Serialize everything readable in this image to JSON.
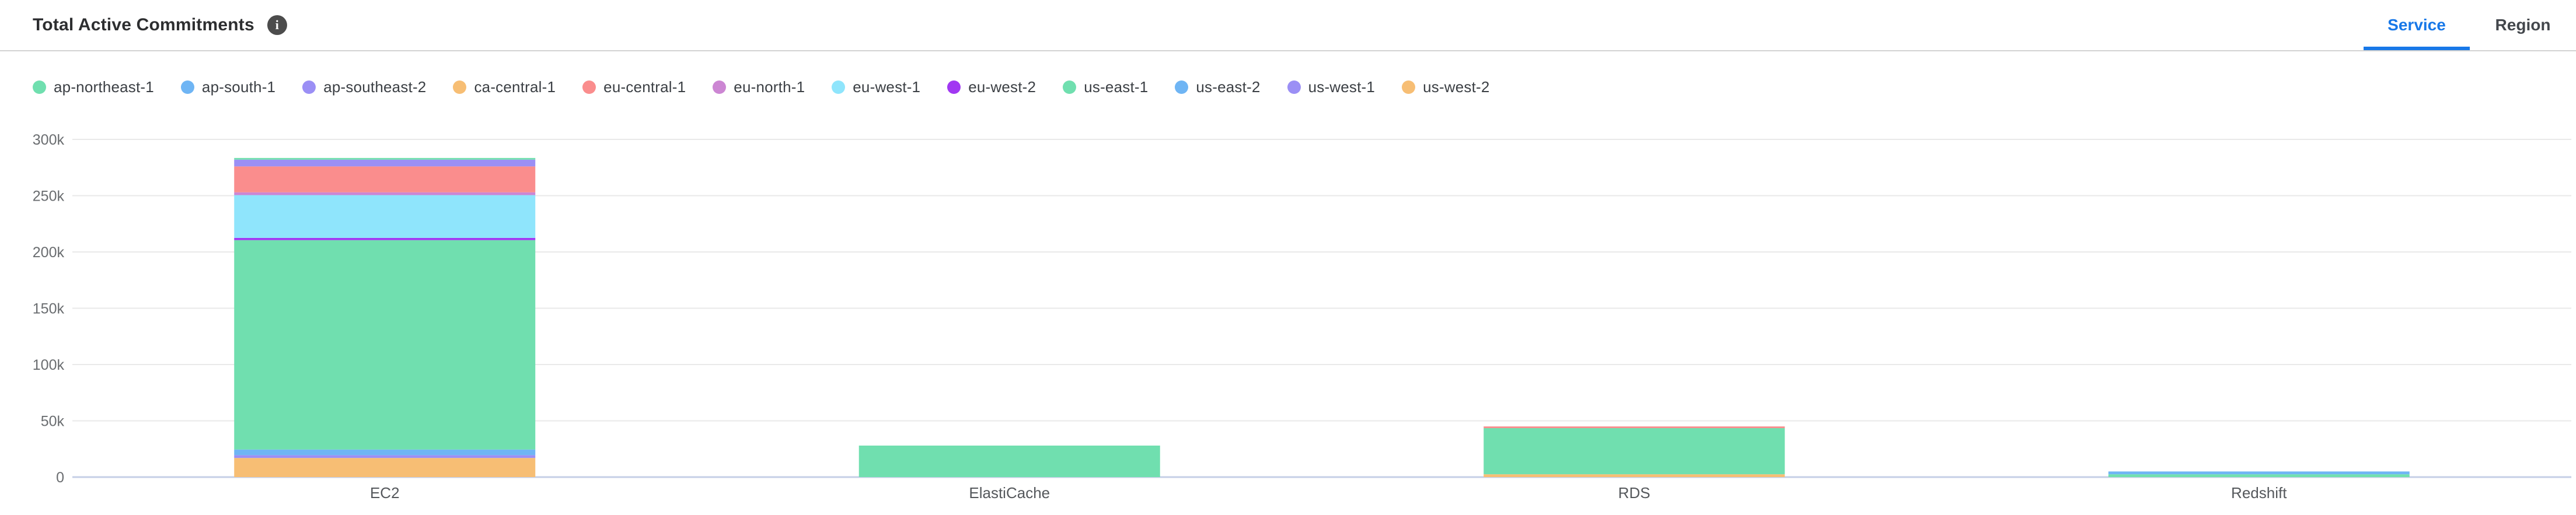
{
  "header": {
    "title": "Total Active Commitments",
    "info_icon": "i",
    "tabs": [
      {
        "label": "Service",
        "active": true
      },
      {
        "label": "Region",
        "active": false
      }
    ]
  },
  "colors": {
    "accent_blue": "#1878e8",
    "inactive_tab": "#43474c",
    "gridline": "#e9e9e9",
    "zero_axis": "#c5cfe6",
    "tick_text": "#6a6d70",
    "category_text": "#55585c"
  },
  "chart_data": {
    "type": "bar",
    "stacked": true,
    "title": "Total Active Commitments",
    "xlabel": "",
    "ylabel": "",
    "legend_position": "top",
    "grid": "horizontal",
    "ylim": [
      0,
      300000
    ],
    "yticks": [
      {
        "value": 0,
        "label": "0"
      },
      {
        "value": 50000,
        "label": "50k"
      },
      {
        "value": 100000,
        "label": "100k"
      },
      {
        "value": 150000,
        "label": "150k"
      },
      {
        "value": 200000,
        "label": "200k"
      },
      {
        "value": 250000,
        "label": "250k"
      },
      {
        "value": 300000,
        "label": "300k"
      }
    ],
    "categories": [
      "EC2",
      "ElastiCache",
      "RDS",
      "Redshift"
    ],
    "stack_note": "bottom of stack = last series in list (reverse legend order)",
    "series": [
      {
        "name": "ap-northeast-1",
        "color": "#70dfaf",
        "values": [
          1500,
          0,
          0,
          0
        ]
      },
      {
        "name": "ap-south-1",
        "color": "#6fb5f4",
        "values": [
          0,
          0,
          0,
          2500
        ]
      },
      {
        "name": "ap-southeast-2",
        "color": "#9b8ff5",
        "values": [
          6000,
          0,
          0,
          0
        ]
      },
      {
        "name": "ca-central-1",
        "color": "#f7be74",
        "values": [
          0,
          0,
          0,
          0
        ]
      },
      {
        "name": "eu-central-1",
        "color": "#fa8d8d",
        "values": [
          23000,
          0,
          1500,
          0
        ]
      },
      {
        "name": "eu-north-1",
        "color": "#cc86d3",
        "values": [
          2500,
          0,
          0,
          0
        ]
      },
      {
        "name": "eu-west-1",
        "color": "#8fe5fc",
        "values": [
          38000,
          0,
          0,
          0
        ]
      },
      {
        "name": "eu-west-2",
        "color": "#a138f2",
        "values": [
          2000,
          0,
          0,
          0
        ]
      },
      {
        "name": "us-east-1",
        "color": "#70dfaf",
        "values": [
          186000,
          28000,
          41000,
          2500
        ]
      },
      {
        "name": "us-east-2",
        "color": "#6fb5f4",
        "values": [
          5000,
          0,
          0,
          0
        ]
      },
      {
        "name": "us-west-1",
        "color": "#9b8ff5",
        "values": [
          2500,
          0,
          0,
          0
        ]
      },
      {
        "name": "us-west-2",
        "color": "#f7be74",
        "values": [
          17000,
          0,
          2500,
          0
        ]
      }
    ]
  }
}
